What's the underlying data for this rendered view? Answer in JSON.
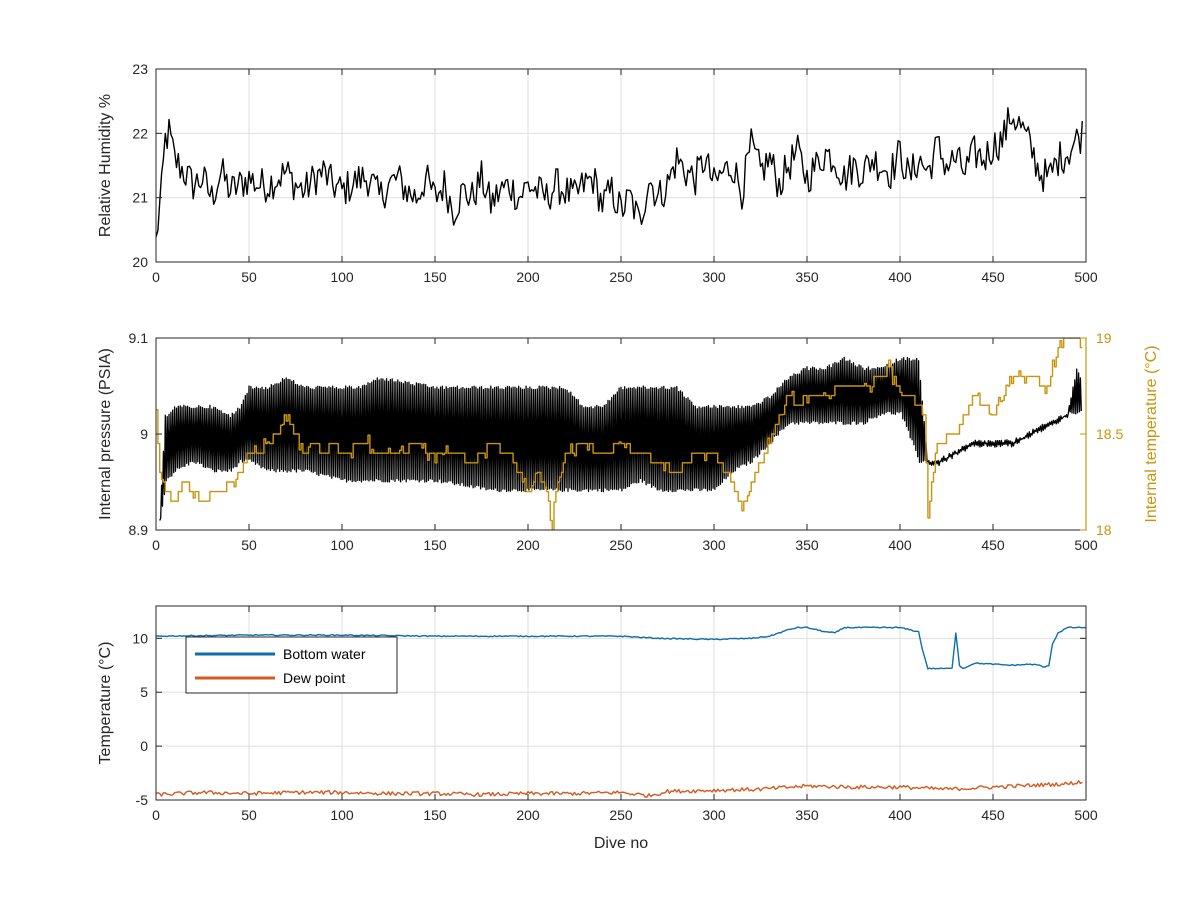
{
  "colors": {
    "black": "#000000",
    "gold": "#c9950f",
    "blue": "#0e6ea8",
    "orange": "#d45a1e",
    "grid": "#dfdfdf",
    "axis": "#262626"
  },
  "chart_data": [
    {
      "type": "line",
      "ylabel": "Relative Humidity %",
      "xlim": [
        0,
        500
      ],
      "ylim": [
        20,
        23
      ],
      "xticks": [
        "0",
        "50",
        "100",
        "150",
        "200",
        "250",
        "300",
        "350",
        "400",
        "450",
        "500"
      ],
      "yticks": [
        "20",
        "21",
        "22",
        "23"
      ],
      "grid": true,
      "series": [
        {
          "color": "#000000",
          "x": [
            0,
            1,
            3,
            5,
            7,
            10,
            15,
            20,
            25,
            30,
            35,
            40,
            45,
            50,
            55,
            60,
            65,
            70,
            75,
            80,
            85,
            90,
            95,
            100,
            105,
            110,
            115,
            120,
            125,
            130,
            135,
            140,
            145,
            150,
            155,
            160,
            165,
            170,
            175,
            180,
            185,
            190,
            195,
            200,
            205,
            210,
            215,
            220,
            225,
            230,
            235,
            240,
            245,
            250,
            255,
            260,
            265,
            270,
            275,
            280,
            285,
            290,
            295,
            300,
            305,
            310,
            315,
            320,
            325,
            330,
            335,
            340,
            345,
            350,
            355,
            360,
            365,
            370,
            375,
            380,
            385,
            390,
            395,
            400,
            405,
            410,
            415,
            420,
            425,
            430,
            435,
            440,
            445,
            450,
            455,
            460,
            465,
            470,
            475,
            480,
            485,
            490,
            495,
            498
          ],
          "values": [
            20.3,
            20.6,
            21.1,
            21.9,
            22.0,
            21.6,
            21.4,
            21.2,
            21.3,
            21.0,
            21.4,
            21.1,
            21.2,
            21.3,
            21.2,
            21.2,
            21.3,
            21.4,
            21.2,
            21.1,
            21.3,
            21.4,
            21.2,
            21.1,
            21.2,
            21.3,
            21.3,
            21.0,
            21.2,
            21.3,
            21.1,
            21.0,
            21.3,
            21.0,
            21.2,
            20.8,
            21.1,
            21.0,
            21.3,
            20.9,
            21.1,
            21.2,
            21.0,
            21.2,
            21.1,
            21.0,
            21.2,
            21.1,
            21.0,
            21.2,
            21.3,
            20.9,
            21.1,
            20.8,
            21.0,
            20.6,
            21.3,
            21.0,
            21.2,
            21.6,
            21.4,
            21.3,
            21.6,
            21.2,
            21.4,
            21.5,
            21.1,
            21.8,
            21.4,
            21.6,
            21.2,
            21.5,
            21.7,
            21.3,
            21.5,
            21.7,
            21.6,
            21.3,
            21.5,
            21.4,
            21.6,
            21.5,
            21.4,
            21.7,
            21.3,
            21.6,
            21.4,
            21.8,
            21.5,
            21.6,
            21.4,
            21.7,
            21.6,
            21.8,
            21.9,
            22.3,
            22.1,
            21.8,
            21.4,
            21.3,
            21.6,
            21.7,
            21.9,
            22.0
          ]
        }
      ]
    },
    {
      "type": "line",
      "ylabel": "Internal pressure (PSIA)",
      "y2label": "Internal temperature (°C)",
      "xlim": [
        0,
        500
      ],
      "ylim": [
        8.9,
        9.1
      ],
      "y2lim": [
        18,
        19
      ],
      "xticks": [
        "0",
        "50",
        "100",
        "150",
        "200",
        "250",
        "300",
        "350",
        "400",
        "450",
        "500"
      ],
      "yticks": [
        "8.9",
        "9",
        "9.1"
      ],
      "y2ticks": [
        "18",
        "18.5",
        "19"
      ],
      "grid": false,
      "series": [
        {
          "color": "#000000",
          "axis": "left",
          "x": [
            2,
            5,
            10,
            20,
            30,
            40,
            45,
            50,
            60,
            70,
            80,
            100,
            110,
            120,
            150,
            180,
            200,
            220,
            230,
            240,
            250,
            260,
            270,
            280,
            290,
            300,
            310,
            320,
            330,
            340,
            350,
            360,
            370,
            380,
            390,
            400,
            410,
            415,
            420,
            430,
            440,
            450,
            460,
            470,
            480,
            490,
            495,
            497
          ],
          "high": [
            8.91,
            9.02,
            9.03,
            9.03,
            9.03,
            9.02,
            9.03,
            9.05,
            9.05,
            9.06,
            9.05,
            9.05,
            9.05,
            9.06,
            9.05,
            9.05,
            9.05,
            9.05,
            9.03,
            9.03,
            9.05,
            9.05,
            9.05,
            9.05,
            9.03,
            9.03,
            9.03,
            9.03,
            9.04,
            9.06,
            9.07,
            9.07,
            9.08,
            9.07,
            9.07,
            9.08,
            9.08,
            8.97,
            8.97,
            8.98,
            8.99,
            8.99,
            8.99,
            9.0,
            9.01,
            9.02,
            9.07,
            9.06
          ],
          "low": [
            8.91,
            8.95,
            8.96,
            8.97,
            8.96,
            8.96,
            8.97,
            8.97,
            8.96,
            8.96,
            8.96,
            8.95,
            8.95,
            8.95,
            8.95,
            8.94,
            8.94,
            8.94,
            8.94,
            8.94,
            8.94,
            8.95,
            8.94,
            8.94,
            8.94,
            8.94,
            8.96,
            8.97,
            8.99,
            9.01,
            9.01,
            9.01,
            9.01,
            9.01,
            9.02,
            9.02,
            8.97,
            8.97,
            8.97,
            8.98,
            8.99,
            8.99,
            8.99,
            9.0,
            9.01,
            9.02,
            9.02,
            9.02
          ]
        },
        {
          "color": "#c9950f",
          "axis": "right",
          "x": [
            0,
            2,
            5,
            10,
            15,
            20,
            25,
            30,
            35,
            40,
            45,
            50,
            55,
            60,
            65,
            70,
            75,
            80,
            85,
            90,
            95,
            100,
            110,
            120,
            130,
            140,
            150,
            160,
            170,
            180,
            190,
            200,
            205,
            210,
            213,
            215,
            220,
            230,
            240,
            250,
            260,
            270,
            280,
            290,
            300,
            310,
            315,
            320,
            330,
            335,
            340,
            345,
            350,
            360,
            370,
            380,
            390,
            395,
            400,
            405,
            410,
            413,
            415,
            420,
            430,
            440,
            450,
            460,
            470,
            480,
            485,
            490,
            495,
            498
          ],
          "values": [
            18.6,
            18.3,
            18.2,
            18.15,
            18.25,
            18.2,
            18.15,
            18.2,
            18.2,
            18.25,
            18.3,
            18.4,
            18.4,
            18.45,
            18.5,
            18.6,
            18.5,
            18.4,
            18.45,
            18.4,
            18.45,
            18.4,
            18.45,
            18.4,
            18.4,
            18.45,
            18.4,
            18.4,
            18.35,
            18.45,
            18.4,
            18.2,
            18.3,
            18.2,
            18.0,
            18.2,
            18.4,
            18.45,
            18.4,
            18.45,
            18.4,
            18.35,
            18.3,
            18.4,
            18.4,
            18.25,
            18.1,
            18.25,
            18.45,
            18.6,
            18.7,
            18.65,
            18.7,
            18.7,
            18.75,
            18.75,
            18.8,
            18.85,
            18.7,
            18.7,
            18.65,
            18.6,
            18.1,
            18.45,
            18.5,
            18.7,
            18.6,
            18.8,
            18.8,
            18.75,
            18.95,
            19.0,
            19.0,
            18.95
          ]
        }
      ]
    },
    {
      "type": "line",
      "xlabel": "Dive no",
      "ylabel": "Temperature (°C)",
      "xlim": [
        0,
        500
      ],
      "ylim": [
        -5,
        13
      ],
      "xticks": [
        "0",
        "50",
        "100",
        "150",
        "200",
        "250",
        "300",
        "350",
        "400",
        "450",
        "500"
      ],
      "yticks": [
        "-5",
        "0",
        "5",
        "10"
      ],
      "grid": true,
      "legend_position": "top-left",
      "series": [
        {
          "name": "Bottom water",
          "color": "#0e6ea8",
          "x": [
            0,
            50,
            100,
            150,
            200,
            250,
            270,
            300,
            320,
            330,
            340,
            345,
            350,
            360,
            365,
            370,
            380,
            390,
            400,
            405,
            410,
            412,
            415,
            420,
            428,
            430,
            432,
            434,
            440,
            450,
            460,
            470,
            475,
            478,
            480,
            482,
            485,
            490,
            495,
            500
          ],
          "values": [
            10.2,
            10.3,
            10.3,
            10.2,
            10.2,
            10.2,
            10.0,
            9.9,
            10.0,
            10.2,
            10.8,
            11.0,
            11.0,
            10.6,
            10.5,
            11.0,
            11.0,
            11.0,
            11.0,
            10.8,
            10.6,
            9.0,
            7.2,
            7.2,
            7.2,
            10.5,
            7.5,
            7.2,
            7.7,
            7.6,
            7.5,
            7.6,
            7.5,
            7.3,
            7.5,
            9.5,
            10.5,
            11.0,
            11.0,
            11.0
          ]
        },
        {
          "name": "Dew point",
          "color": "#d45a1e",
          "x": [
            0,
            25,
            50,
            75,
            100,
            125,
            150,
            175,
            200,
            225,
            250,
            265,
            275,
            300,
            325,
            350,
            375,
            400,
            425,
            450,
            475,
            490,
            498
          ],
          "values": [
            -4.5,
            -4.3,
            -4.4,
            -4.3,
            -4.3,
            -4.4,
            -4.4,
            -4.5,
            -4.4,
            -4.4,
            -4.3,
            -4.6,
            -4.2,
            -4.1,
            -4.0,
            -3.7,
            -3.8,
            -3.8,
            -4.0,
            -3.8,
            -3.6,
            -3.5,
            -3.3
          ]
        }
      ]
    }
  ]
}
